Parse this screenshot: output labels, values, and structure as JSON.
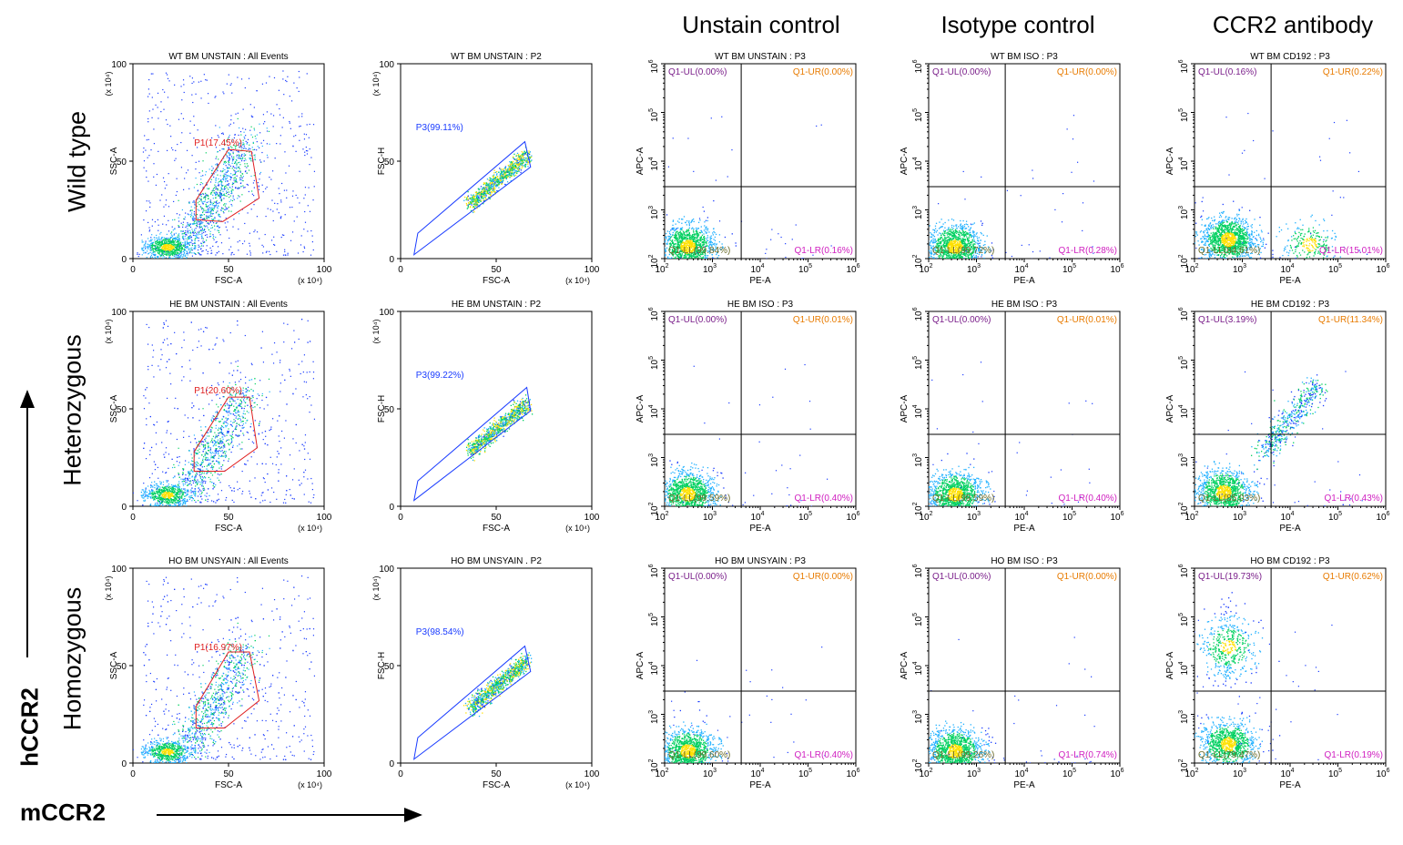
{
  "columns": [
    "Unstain control",
    "Isotype control",
    "CCR2 antibody"
  ],
  "rows": [
    "Wild type",
    "Heterozygous",
    "Homozygous"
  ],
  "axis_labels": {
    "vertical": "hCCR2",
    "horizontal": "mCCR2"
  },
  "chart_data": [
    {
      "type": "scatter",
      "row": 0,
      "panel": "scatter-gate",
      "title": "WT BM UNSTAIN : All Events",
      "xlabel": "FSC-A",
      "ylabel": "SSC-A",
      "xunit": "(x 10⁴)",
      "yunit": "(x 10⁴)",
      "xlim": [
        0,
        100
      ],
      "ylim": [
        0,
        100
      ],
      "xticks": [
        "0",
        "50",
        "100"
      ],
      "yticks": [
        "0",
        "50",
        "100"
      ],
      "gate": {
        "name": "P1",
        "percent": "17.45%",
        "label": "P1(17.45%)"
      },
      "gate_polygon": [
        [
          33,
          20
        ],
        [
          47,
          19
        ],
        [
          66,
          31
        ],
        [
          62,
          55
        ],
        [
          50,
          56
        ],
        [
          33,
          30
        ]
      ]
    },
    {
      "type": "scatter",
      "row": 0,
      "panel": "singlet-gate",
      "title": "WT BM UNSTAIN : P2",
      "xlabel": "FSC-A",
      "ylabel": "FSC-H",
      "xunit": "(x 10⁴)",
      "yunit": "(x 10⁴)",
      "xlim": [
        0,
        100
      ],
      "ylim": [
        0,
        100
      ],
      "xticks": [
        "0",
        "50",
        "100"
      ],
      "yticks": [
        "0",
        "50",
        "100"
      ],
      "gate": {
        "name": "P3",
        "percent": "99.11%",
        "label": "P3(99.11%)"
      },
      "gate_polygon": [
        [
          7,
          2
        ],
        [
          68,
          47
        ],
        [
          65,
          60
        ],
        [
          9,
          13
        ]
      ]
    },
    {
      "type": "scatter",
      "row": 0,
      "panel": "quadrant",
      "title": "WT BM UNSTAIN : P3",
      "xlabel": "PE-A",
      "ylabel": "APC-A",
      "log": true,
      "xlim": [
        100,
        1000000
      ],
      "ylim": [
        100,
        1000000
      ],
      "quadrants": {
        "UL": "Q1-UL(0.00%)",
        "UR": "Q1-UR(0.00%)",
        "LL": "Q1-LL(99.84%)",
        "LR": "Q1-LR(0.16%)"
      },
      "quadrant_values": {
        "UL": 0.0,
        "UR": 0.0,
        "LL": 99.84,
        "LR": 0.16
      },
      "divider": {
        "x": 4000,
        "y": 3000
      },
      "populations": [
        {
          "x": 300,
          "y": 180,
          "n": 1200
        }
      ]
    },
    {
      "type": "scatter",
      "row": 0,
      "panel": "quadrant",
      "title": "WT BM ISO : P3",
      "xlabel": "PE-A",
      "ylabel": "APC-A",
      "log": true,
      "xlim": [
        100,
        1000000
      ],
      "ylim": [
        100,
        1000000
      ],
      "quadrants": {
        "UL": "Q1-UL(0.00%)",
        "UR": "Q1-UR(0.00%)",
        "LL": "Q1-LL(99.72%)",
        "LR": "Q1-LR(0.28%)"
      },
      "quadrant_values": {
        "UL": 0.0,
        "UR": 0.0,
        "LL": 99.72,
        "LR": 0.28
      },
      "divider": {
        "x": 4000,
        "y": 3000
      },
      "populations": [
        {
          "x": 350,
          "y": 180,
          "n": 1200
        }
      ]
    },
    {
      "type": "scatter",
      "row": 0,
      "panel": "quadrant",
      "title": "WT BM CD192 : P3",
      "xlabel": "PE-A",
      "ylabel": "APC-A",
      "log": true,
      "xlim": [
        100,
        1000000
      ],
      "ylim": [
        100,
        1000000
      ],
      "quadrants": {
        "UL": "Q1-UL(0.16%)",
        "UR": "Q1-UR(0.22%)",
        "LL": "Q1-LL(84.61%)",
        "LR": "Q1-LR(15.01%)"
      },
      "quadrant_values": {
        "UL": 0.16,
        "UR": 0.22,
        "LL": 84.61,
        "LR": 15.01
      },
      "divider": {
        "x": 4000,
        "y": 3000
      },
      "populations": [
        {
          "x": 500,
          "y": 250,
          "n": 1300
        },
        {
          "x": 25000,
          "y": 200,
          "n": 250
        }
      ]
    },
    {
      "type": "scatter",
      "row": 1,
      "panel": "scatter-gate",
      "title": "HE BM UNSTAIN : All Events",
      "xlabel": "FSC-A",
      "ylabel": "SSC-A",
      "xunit": "(x 10⁴)",
      "yunit": "(x 10⁴)",
      "xlim": [
        0,
        100
      ],
      "ylim": [
        0,
        100
      ],
      "xticks": [
        "0",
        "50",
        "100"
      ],
      "yticks": [
        "0",
        "50",
        "100"
      ],
      "gate": {
        "name": "P1",
        "percent": "20.60%",
        "label": "P1(20.60%)"
      },
      "gate_polygon": [
        [
          32,
          18
        ],
        [
          48,
          18
        ],
        [
          65,
          30
        ],
        [
          61,
          56
        ],
        [
          50,
          56
        ],
        [
          32,
          28
        ]
      ]
    },
    {
      "type": "scatter",
      "row": 1,
      "panel": "singlet-gate",
      "title": "HE BM UNSTAIN : P2",
      "xlabel": "FSC-A",
      "ylabel": "FSC-H",
      "xunit": "(x 10⁴)",
      "yunit": "(x 10⁴)",
      "xlim": [
        0,
        100
      ],
      "ylim": [
        0,
        100
      ],
      "xticks": [
        "0",
        "50",
        "100"
      ],
      "yticks": [
        "0",
        "50",
        "100"
      ],
      "gate": {
        "name": "P3",
        "percent": "99.22%",
        "label": "P3(99.22%)"
      },
      "gate_polygon": [
        [
          7,
          3
        ],
        [
          68,
          49
        ],
        [
          66,
          61
        ],
        [
          9,
          13
        ]
      ]
    },
    {
      "type": "scatter",
      "row": 1,
      "panel": "quadrant",
      "title": "HE BM ISO : P3",
      "xlabel": "PE-A",
      "ylabel": "APC-A",
      "log": true,
      "xlim": [
        100,
        1000000
      ],
      "ylim": [
        100,
        1000000
      ],
      "quadrants": {
        "UL": "Q1-UL(0.00%)",
        "UR": "Q1-UR(0.01%)",
        "LL": "Q1-LL(99.59%)",
        "LR": "Q1-LR(0.40%)"
      },
      "quadrant_values": {
        "UL": 0.0,
        "UR": 0.01,
        "LL": 99.59,
        "LR": 0.4
      },
      "divider": {
        "x": 4000,
        "y": 3000
      },
      "populations": [
        {
          "x": 300,
          "y": 180,
          "n": 1200
        }
      ]
    },
    {
      "type": "scatter",
      "row": 1,
      "panel": "quadrant",
      "title": "HE BM ISO : P3",
      "xlabel": "PE-A",
      "ylabel": "APC-A",
      "log": true,
      "xlim": [
        100,
        1000000
      ],
      "ylim": [
        100,
        1000000
      ],
      "quadrants": {
        "UL": "Q1-UL(0.00%)",
        "UR": "Q1-UR(0.01%)",
        "LL": "Q1-LL(99.59%)",
        "LR": "Q1-LR(0.40%)"
      },
      "quadrant_values": {
        "UL": 0.0,
        "UR": 0.01,
        "LL": 99.59,
        "LR": 0.4
      },
      "divider": {
        "x": 4000,
        "y": 3000
      },
      "populations": [
        {
          "x": 350,
          "y": 180,
          "n": 1200
        }
      ]
    },
    {
      "type": "scatter",
      "row": 1,
      "panel": "quadrant",
      "title": "HE BM CD192 : P3",
      "xlabel": "PE-A",
      "ylabel": "APC-A",
      "log": true,
      "xlim": [
        100,
        1000000
      ],
      "ylim": [
        100,
        1000000
      ],
      "quadrants": {
        "UL": "Q1-UL(3.19%)",
        "UR": "Q1-UR(11.34%)",
        "LL": "Q1-LL(85.03%)",
        "LR": "Q1-LR(0.43%)"
      },
      "quadrant_values": {
        "UL": 3.19,
        "UR": 11.34,
        "LL": 85.03,
        "LR": 0.43
      },
      "divider": {
        "x": 4000,
        "y": 3000
      },
      "populations": [
        {
          "x": 400,
          "y": 200,
          "n": 1100
        },
        {
          "x": 20000,
          "y": 20000,
          "n": 500
        }
      ]
    },
    {
      "type": "scatter",
      "row": 2,
      "panel": "scatter-gate",
      "title": "HO BM UNSYAIN : All Events",
      "xlabel": "FSC-A",
      "ylabel": "SSC-A",
      "xunit": "(x 10⁴)",
      "yunit": "(x 10⁴)",
      "xlim": [
        0,
        100
      ],
      "ylim": [
        0,
        100
      ],
      "xticks": [
        "0",
        "50",
        "100"
      ],
      "yticks": [
        "0",
        "50",
        "100"
      ],
      "gate": {
        "name": "P1",
        "percent": "16.97%",
        "label": "P1(16.97%)"
      },
      "gate_polygon": [
        [
          33,
          18
        ],
        [
          48,
          18
        ],
        [
          66,
          32
        ],
        [
          61,
          57
        ],
        [
          50,
          57
        ],
        [
          33,
          29
        ]
      ]
    },
    {
      "type": "scatter",
      "row": 2,
      "panel": "singlet-gate",
      "title": "HO BM UNSYAIN . P2",
      "xlabel": "FSC-A",
      "ylabel": "FSC-H",
      "xunit": "(x 10⁴)",
      "yunit": "(x 10⁴)",
      "xlim": [
        0,
        100
      ],
      "ylim": [
        0,
        100
      ],
      "xticks": [
        "0",
        "50",
        "100"
      ],
      "yticks": [
        "0",
        "50",
        "100"
      ],
      "gate": {
        "name": "P3",
        "percent": "98.54%",
        "label": "P3(98.54%)"
      },
      "gate_polygon": [
        [
          7,
          2
        ],
        [
          68,
          47
        ],
        [
          65,
          60
        ],
        [
          9,
          13
        ]
      ]
    },
    {
      "type": "scatter",
      "row": 2,
      "panel": "quadrant",
      "title": "HO BM UNSYAIN : P3",
      "xlabel": "PE-A",
      "ylabel": "APC-A",
      "log": true,
      "xlim": [
        100,
        1000000
      ],
      "ylim": [
        100,
        1000000
      ],
      "quadrants": {
        "UL": "Q1-UL(0.00%)",
        "UR": "Q1-UR(0.00%)",
        "LL": "Q1-LL(99.60%)",
        "LR": "Q1-LR(0.40%)"
      },
      "quadrant_values": {
        "UL": 0.0,
        "UR": 0.0,
        "LL": 99.6,
        "LR": 0.4
      },
      "divider": {
        "x": 4000,
        "y": 3000
      },
      "populations": [
        {
          "x": 300,
          "y": 180,
          "n": 1200
        }
      ]
    },
    {
      "type": "scatter",
      "row": 2,
      "panel": "quadrant",
      "title": "HO BM ISO : P3",
      "xlabel": "PE-A",
      "ylabel": "APC-A",
      "log": true,
      "xlim": [
        100,
        1000000
      ],
      "ylim": [
        100,
        1000000
      ],
      "quadrants": {
        "UL": "Q1-UL(0.00%)",
        "UR": "Q1-UR(0.00%)",
        "LL": "Q1-LL(99.26%)",
        "LR": "Q1-LR(0.74%)"
      },
      "quadrant_values": {
        "UL": 0.0,
        "UR": 0.0,
        "LL": 99.26,
        "LR": 0.74
      },
      "divider": {
        "x": 4000,
        "y": 3000
      },
      "populations": [
        {
          "x": 350,
          "y": 180,
          "n": 1200
        }
      ]
    },
    {
      "type": "scatter",
      "row": 2,
      "panel": "quadrant",
      "title": "HO BM CD192 : P3",
      "xlabel": "PE-A",
      "ylabel": "APC-A",
      "log": true,
      "xlim": [
        100,
        1000000
      ],
      "ylim": [
        100,
        1000000
      ],
      "quadrants": {
        "UL": "Q1-UL(19.73%)",
        "UR": "Q1-UR(0.62%)",
        "LL": "Q1-LL(79.47%)",
        "LR": "Q1-LR(0.19%)"
      },
      "quadrant_values": {
        "UL": 19.73,
        "UR": 0.62,
        "LL": 79.47,
        "LR": 0.19
      },
      "divider": {
        "x": 4000,
        "y": 3000
      },
      "populations": [
        {
          "x": 500,
          "y": 250,
          "n": 1000
        },
        {
          "x": 500,
          "y": 25000,
          "n": 500
        }
      ]
    }
  ],
  "colors": {
    "dots": "#1a3cff",
    "dense": "#00d060",
    "core": "#ffe000",
    "gate_p1": "#e02020",
    "gate_p3": "#1a3cff",
    "q_ul": "#7a1f8a",
    "q_ur": "#e87b00",
    "q_ll": "#6b6b2a",
    "q_lr": "#d020c0"
  }
}
